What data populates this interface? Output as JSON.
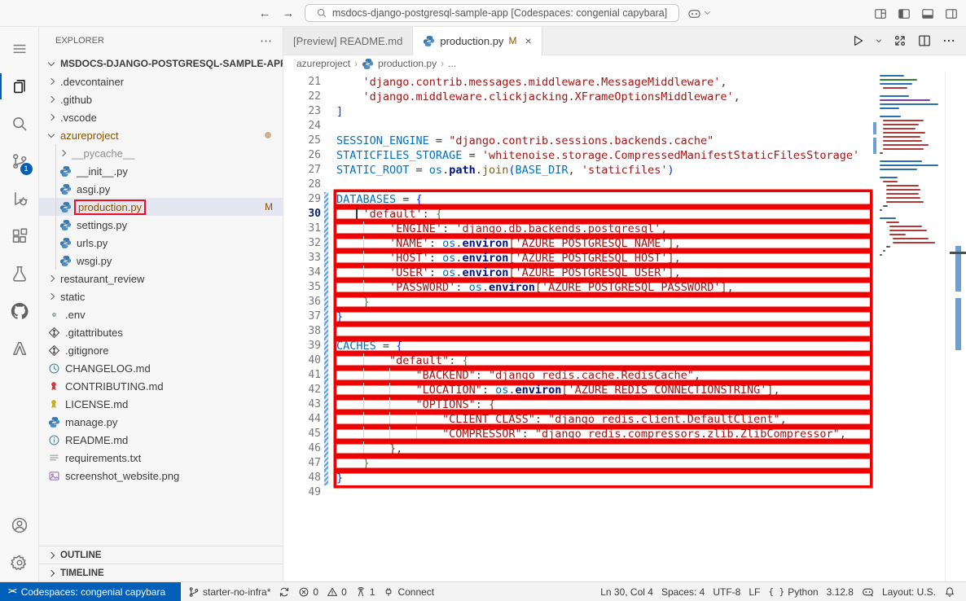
{
  "colors": {
    "accent_blue": "#005fb8",
    "highlight_red": "#ee0000",
    "modified_orange": "#895503",
    "selection_bg": "#e4e6f1"
  },
  "title_bar": {
    "back_icon": "←",
    "forward_icon": "→",
    "search_value": "msdocs-django-postgresql-sample-app [Codespaces: congenial capybara]",
    "window_icons": [
      "customize-layout-icon",
      "toggle-sidebar-icon",
      "toggle-panel-icon",
      "toggle-secondary-sidebar-icon"
    ]
  },
  "activity_bar": {
    "items": [
      {
        "name": "menu",
        "icon": "menu"
      },
      {
        "name": "explorer",
        "icon": "files",
        "active": true
      },
      {
        "name": "search",
        "icon": "search"
      },
      {
        "name": "source-control",
        "icon": "scm",
        "badge": "1"
      },
      {
        "name": "run-debug",
        "icon": "debug"
      },
      {
        "name": "extensions",
        "icon": "extensions"
      },
      {
        "name": "testing",
        "icon": "beaker"
      },
      {
        "name": "github",
        "icon": "github"
      },
      {
        "name": "azure",
        "icon": "azure"
      }
    ],
    "bottom_items": [
      {
        "name": "accounts",
        "icon": "account"
      },
      {
        "name": "settings",
        "icon": "settings"
      }
    ]
  },
  "explorer": {
    "header": "EXPLORER",
    "header_more": "⋯",
    "root_label": "MSDOCS-DJANGO-POSTGRESQL-SAMPLE-APP...",
    "items": [
      {
        "label": ".devcontainer",
        "chevron": "right",
        "depth": 1
      },
      {
        "label": ".github",
        "chevron": "right",
        "depth": 1
      },
      {
        "label": ".vscode",
        "chevron": "right",
        "depth": 1
      },
      {
        "label": "azureproject",
        "chevron": "down",
        "depth": 1,
        "modified": true,
        "dot": true
      },
      {
        "label": "__pycache__",
        "chevron": "right",
        "depth": 2,
        "dim": true
      },
      {
        "label": "__init__.py",
        "icon": "python",
        "depth": 2
      },
      {
        "label": "asgi.py",
        "icon": "python",
        "depth": 2
      },
      {
        "label": "production.py",
        "icon": "python",
        "depth": 2,
        "selected": true,
        "modified": true,
        "badge": "M",
        "redbox": true
      },
      {
        "label": "settings.py",
        "icon": "python",
        "depth": 2
      },
      {
        "label": "urls.py",
        "icon": "python",
        "depth": 2
      },
      {
        "label": "wsgi.py",
        "icon": "python",
        "depth": 2
      },
      {
        "label": "restaurant_review",
        "chevron": "right",
        "depth": 1
      },
      {
        "label": "static",
        "chevron": "right",
        "depth": 1
      },
      {
        "label": ".env",
        "icon": "gear",
        "depth": 1
      },
      {
        "label": ".gitattributes",
        "icon": "git",
        "depth": 1
      },
      {
        "label": ".gitignore",
        "icon": "git",
        "depth": 1
      },
      {
        "label": "CHANGELOG.md",
        "icon": "clock",
        "depth": 1
      },
      {
        "label": "CONTRIBUTING.md",
        "icon": "medal-red",
        "depth": 1
      },
      {
        "label": "LICENSE.md",
        "icon": "medal-yellow",
        "depth": 1
      },
      {
        "label": "manage.py",
        "icon": "python",
        "depth": 1
      },
      {
        "label": "README.md",
        "icon": "info",
        "depth": 1
      },
      {
        "label": "requirements.txt",
        "icon": "text",
        "depth": 1
      },
      {
        "label": "screenshot_website.png",
        "icon": "image",
        "depth": 1
      }
    ],
    "sections": [
      "OUTLINE",
      "TIMELINE"
    ]
  },
  "tabs": [
    {
      "label": "[Preview] README.md",
      "active": false
    },
    {
      "label": "production.py",
      "icon": "python",
      "badge": "M",
      "close": "×",
      "active": true
    }
  ],
  "editor_actions": [
    "run",
    "run-dropdown",
    "open-changes",
    "split-editor",
    "more-actions"
  ],
  "breadcrumbs": {
    "items": [
      "azureproject",
      "production.py",
      "..."
    ],
    "separator": "›"
  },
  "editor": {
    "cursor": {
      "line": 30,
      "col": 4
    },
    "lines": [
      {
        "n": 21,
        "hl": false,
        "t": [
          [
            "    ",
            "d"
          ],
          [
            "'django.contrib.messages.middleware.MessageMiddleware'",
            "s"
          ],
          [
            ",",
            "d"
          ]
        ]
      },
      {
        "n": 22,
        "hl": false,
        "t": [
          [
            "    ",
            "d"
          ],
          [
            "'django.middleware.clickjacking.XFrameOptionsMiddleware'",
            "s"
          ],
          [
            ",",
            "d"
          ]
        ]
      },
      {
        "n": 23,
        "hl": false,
        "t": [
          [
            "]",
            "b1"
          ]
        ]
      },
      {
        "n": 24,
        "hl": false,
        "t": []
      },
      {
        "n": 25,
        "hl": false,
        "t": [
          [
            "SESSION_ENGINE",
            "v"
          ],
          [
            " = ",
            "d"
          ],
          [
            "\"django.contrib.sessions.backends.cache\"",
            "s"
          ]
        ]
      },
      {
        "n": 26,
        "hl": false,
        "t": [
          [
            "STATICFILES_STORAGE",
            "v"
          ],
          [
            " = ",
            "d"
          ],
          [
            "'whitenoise.storage.CompressedManifestStaticFilesStorage'",
            "s"
          ]
        ]
      },
      {
        "n": 27,
        "hl": false,
        "t": [
          [
            "STATIC_ROOT",
            "v"
          ],
          [
            " = ",
            "d"
          ],
          [
            "os",
            "v"
          ],
          [
            ".",
            "d"
          ],
          [
            "path",
            "p"
          ],
          [
            ".",
            "d"
          ],
          [
            "join",
            "f"
          ],
          [
            "(",
            "b1"
          ],
          [
            "BASE_DIR",
            "v"
          ],
          [
            ", ",
            "d"
          ],
          [
            "'staticfiles'",
            "s"
          ],
          [
            ")",
            "b1"
          ]
        ]
      },
      {
        "n": 28,
        "hl": false,
        "t": []
      },
      {
        "n": 29,
        "hl": true,
        "t": [
          [
            "DATABASES",
            "v"
          ],
          [
            " = ",
            "d"
          ],
          [
            "{",
            "b1"
          ]
        ]
      },
      {
        "n": 30,
        "hl": true,
        "t": [
          [
            "    ",
            "d"
          ],
          [
            "'default'",
            "s"
          ],
          [
            ": ",
            "d"
          ],
          [
            "{",
            "b2"
          ]
        ]
      },
      {
        "n": 31,
        "hl": true,
        "t": [
          [
            "        ",
            "d"
          ],
          [
            "'ENGINE'",
            "s"
          ],
          [
            ": ",
            "d"
          ],
          [
            "'django.db.backends.postgresql'",
            "s"
          ],
          [
            ",",
            "d"
          ]
        ]
      },
      {
        "n": 32,
        "hl": true,
        "t": [
          [
            "        ",
            "d"
          ],
          [
            "'NAME'",
            "s"
          ],
          [
            ": ",
            "d"
          ],
          [
            "os",
            "v"
          ],
          [
            ".",
            "d"
          ],
          [
            "environ",
            "p"
          ],
          [
            "[",
            "b3"
          ],
          [
            "'AZURE_POSTGRESQL_NAME'",
            "s"
          ],
          [
            "]",
            "b3"
          ],
          [
            ",",
            "d"
          ]
        ]
      },
      {
        "n": 33,
        "hl": true,
        "t": [
          [
            "        ",
            "d"
          ],
          [
            "'HOST'",
            "s"
          ],
          [
            ": ",
            "d"
          ],
          [
            "os",
            "v"
          ],
          [
            ".",
            "d"
          ],
          [
            "environ",
            "p"
          ],
          [
            "[",
            "b3"
          ],
          [
            "'AZURE_POSTGRESQL_HOST'",
            "s"
          ],
          [
            "]",
            "b3"
          ],
          [
            ",",
            "d"
          ]
        ]
      },
      {
        "n": 34,
        "hl": true,
        "t": [
          [
            "        ",
            "d"
          ],
          [
            "'USER'",
            "s"
          ],
          [
            ": ",
            "d"
          ],
          [
            "os",
            "v"
          ],
          [
            ".",
            "d"
          ],
          [
            "environ",
            "p"
          ],
          [
            "[",
            "b3"
          ],
          [
            "'AZURE_POSTGRESQL_USER'",
            "s"
          ],
          [
            "]",
            "b3"
          ],
          [
            ",",
            "d"
          ]
        ]
      },
      {
        "n": 35,
        "hl": true,
        "t": [
          [
            "        ",
            "d"
          ],
          [
            "'PASSWORD'",
            "s"
          ],
          [
            ": ",
            "d"
          ],
          [
            "os",
            "v"
          ],
          [
            ".",
            "d"
          ],
          [
            "environ",
            "p"
          ],
          [
            "[",
            "b3"
          ],
          [
            "'AZURE_POSTGRESQL_PASSWORD'",
            "s"
          ],
          [
            "]",
            "b3"
          ],
          [
            ",",
            "d"
          ]
        ]
      },
      {
        "n": 36,
        "hl": true,
        "t": [
          [
            "    ",
            "d"
          ],
          [
            "}",
            "b2"
          ]
        ]
      },
      {
        "n": 37,
        "hl": true,
        "t": [
          [
            "}",
            "b1"
          ]
        ]
      },
      {
        "n": 38,
        "hl": true,
        "t": []
      },
      {
        "n": 39,
        "hl": true,
        "t": [
          [
            "CACHES",
            "v"
          ],
          [
            " = ",
            "d"
          ],
          [
            "{",
            "b1"
          ]
        ]
      },
      {
        "n": 40,
        "hl": true,
        "t": [
          [
            "        ",
            "d"
          ],
          [
            "\"default\"",
            "s"
          ],
          [
            ": ",
            "d"
          ],
          [
            "{",
            "b2"
          ]
        ]
      },
      {
        "n": 41,
        "hl": true,
        "t": [
          [
            "            ",
            "d"
          ],
          [
            "\"BACKEND\"",
            "s"
          ],
          [
            ": ",
            "d"
          ],
          [
            "\"django_redis.cache.RedisCache\"",
            "s"
          ],
          [
            ",",
            "d"
          ]
        ]
      },
      {
        "n": 42,
        "hl": true,
        "t": [
          [
            "            ",
            "d"
          ],
          [
            "\"LOCATION\"",
            "s"
          ],
          [
            ": ",
            "d"
          ],
          [
            "os",
            "v"
          ],
          [
            ".",
            "d"
          ],
          [
            "environ",
            "p"
          ],
          [
            "[",
            "b3"
          ],
          [
            "'AZURE_REDIS_CONNECTIONSTRING'",
            "s"
          ],
          [
            "]",
            "b3"
          ],
          [
            ",",
            "d"
          ]
        ]
      },
      {
        "n": 43,
        "hl": true,
        "t": [
          [
            "            ",
            "d"
          ],
          [
            "\"OPTIONS\"",
            "s"
          ],
          [
            ": ",
            "d"
          ],
          [
            "{",
            "b3"
          ]
        ]
      },
      {
        "n": 44,
        "hl": true,
        "t": [
          [
            "                ",
            "d"
          ],
          [
            "\"CLIENT_CLASS\"",
            "s"
          ],
          [
            ": ",
            "d"
          ],
          [
            "\"django_redis.client.DefaultClient\"",
            "s"
          ],
          [
            ",",
            "d"
          ]
        ]
      },
      {
        "n": 45,
        "hl": true,
        "t": [
          [
            "                ",
            "d"
          ],
          [
            "\"COMPRESSOR\"",
            "s"
          ],
          [
            ": ",
            "d"
          ],
          [
            "\"django_redis.compressors.zlib.ZlibCompressor\"",
            "s"
          ],
          [
            ",",
            "d"
          ]
        ]
      },
      {
        "n": 46,
        "hl": true,
        "t": [
          [
            "        ",
            "d"
          ],
          [
            "}",
            "b3"
          ],
          [
            ",",
            "d"
          ]
        ]
      },
      {
        "n": 47,
        "hl": true,
        "t": [
          [
            "    ",
            "d"
          ],
          [
            "}",
            "b2"
          ]
        ]
      },
      {
        "n": 48,
        "hl": true,
        "t": [
          [
            "}",
            "b1"
          ]
        ]
      },
      {
        "n": 49,
        "hl": false,
        "t": []
      }
    ]
  },
  "status_bar": {
    "remote": {
      "icon": "remote-icon",
      "label": "Codespaces: congenial capybara"
    },
    "left_items": [
      {
        "name": "branch",
        "icon": "branch",
        "label": "starter-no-infra*"
      },
      {
        "name": "sync",
        "icon": "sync",
        "label": ""
      },
      {
        "name": "errors",
        "icon": "error",
        "label": "0"
      },
      {
        "name": "warnings",
        "icon": "warning",
        "label": "0"
      },
      {
        "name": "ports",
        "icon": "tower",
        "label": "1"
      },
      {
        "name": "connect",
        "icon": "plug",
        "label": "Connect"
      }
    ],
    "right_items": [
      {
        "name": "cursor-position",
        "label": "Ln 30, Col 4"
      },
      {
        "name": "indentation",
        "label": "Spaces: 4"
      },
      {
        "name": "encoding",
        "label": "UTF-8"
      },
      {
        "name": "eol",
        "label": "LF"
      },
      {
        "name": "language-mode",
        "icon": "braces",
        "label": "Python"
      },
      {
        "name": "python-version",
        "label": "3.12.8"
      },
      {
        "name": "copilot",
        "icon": "copilot",
        "label": ""
      },
      {
        "name": "keyboard-layout",
        "label": "Layout: U.S."
      },
      {
        "name": "notifications",
        "icon": "bell",
        "label": ""
      }
    ]
  }
}
